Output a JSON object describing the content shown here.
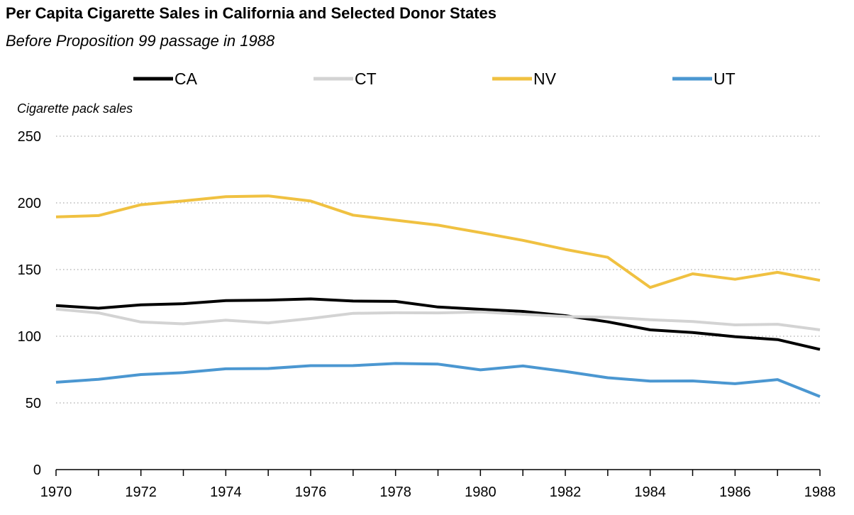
{
  "chart_data": {
    "type": "line",
    "title": "Per Capita Cigarette Sales in California and Selected Donor States",
    "subtitle": "Before Proposition 99 passage in 1988",
    "ylabel": "Cigarette pack sales",
    "xlabel": "",
    "x": [
      1970,
      1971,
      1972,
      1973,
      1974,
      1975,
      1976,
      1977,
      1978,
      1979,
      1980,
      1981,
      1982,
      1983,
      1984,
      1985,
      1986,
      1987,
      1988
    ],
    "xlim": [
      1970,
      1988
    ],
    "ylim": [
      0,
      250
    ],
    "x_ticks": [
      1970,
      1972,
      1974,
      1976,
      1978,
      1980,
      1982,
      1984,
      1986,
      1988
    ],
    "y_ticks": [
      0,
      50,
      100,
      150,
      200,
      250
    ],
    "grid": "horizontal dotted",
    "legend_position": "top",
    "series": [
      {
        "name": "CA",
        "color": "#000000",
        "values": [
          123.0,
          121.0,
          123.5,
          124.4,
          126.7,
          127.1,
          128.0,
          126.4,
          126.1,
          121.9,
          120.2,
          118.6,
          115.4,
          110.8,
          104.8,
          102.8,
          99.7,
          97.5,
          90.1
        ]
      },
      {
        "name": "CT",
        "color": "#d3d3d3",
        "values": [
          120.3,
          117.5,
          110.7,
          109.3,
          112.0,
          110.0,
          113.3,
          117.2,
          117.6,
          117.5,
          118.2,
          116.5,
          114.8,
          114.3,
          112.4,
          111.0,
          108.5,
          109.0,
          104.8
        ]
      },
      {
        "name": "NV",
        "color": "#f0c141",
        "values": [
          189.5,
          190.5,
          198.6,
          201.5,
          204.7,
          205.2,
          201.4,
          190.8,
          187.0,
          183.3,
          177.7,
          171.9,
          165.1,
          159.2,
          136.6,
          146.8,
          142.7,
          147.9,
          141.9
        ]
      },
      {
        "name": "UT",
        "color": "#4b97d1",
        "values": [
          65.5,
          67.7,
          71.3,
          72.7,
          75.6,
          75.8,
          77.9,
          78.0,
          79.6,
          79.1,
          74.8,
          77.7,
          73.6,
          68.9,
          66.4,
          66.5,
          64.4,
          67.5,
          54.8
        ]
      }
    ]
  }
}
